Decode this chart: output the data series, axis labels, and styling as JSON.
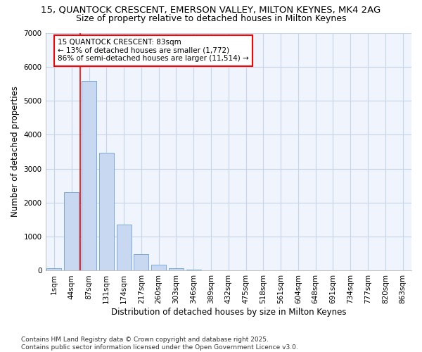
{
  "title_line1": "15, QUANTOCK CRESCENT, EMERSON VALLEY, MILTON KEYNES, MK4 2AG",
  "title_line2": "Size of property relative to detached houses in Milton Keynes",
  "xlabel": "Distribution of detached houses by size in Milton Keynes",
  "ylabel": "Number of detached properties",
  "categories": [
    "1sqm",
    "44sqm",
    "87sqm",
    "131sqm",
    "174sqm",
    "217sqm",
    "260sqm",
    "303sqm",
    "346sqm",
    "389sqm",
    "432sqm",
    "475sqm",
    "518sqm",
    "561sqm",
    "604sqm",
    "648sqm",
    "691sqm",
    "734sqm",
    "777sqm",
    "820sqm",
    "863sqm"
  ],
  "values": [
    75,
    2300,
    5580,
    3460,
    1360,
    480,
    175,
    75,
    30,
    0,
    0,
    0,
    0,
    0,
    0,
    0,
    0,
    0,
    0,
    0,
    0
  ],
  "bar_color": "#c8d8f0",
  "bar_edge_color": "#7aaadd",
  "grid_color": "#c8d4e8",
  "background_color": "#ffffff",
  "plot_bg_color": "#f0f4fc",
  "vline_color": "red",
  "vline_x_idx": 2,
  "annotation_text": "15 QUANTOCK CRESCENT: 83sqm\n← 13% of detached houses are smaller (1,772)\n86% of semi-detached houses are larger (11,514) →",
  "annotation_box_color": "white",
  "annotation_box_edge": "red",
  "ylim": [
    0,
    7000
  ],
  "yticks": [
    0,
    1000,
    2000,
    3000,
    4000,
    5000,
    6000,
    7000
  ],
  "footer": "Contains HM Land Registry data © Crown copyright and database right 2025.\nContains public sector information licensed under the Open Government Licence v3.0.",
  "title_fontsize": 9.5,
  "subtitle_fontsize": 9,
  "axis_label_fontsize": 8.5,
  "tick_fontsize": 7.5,
  "annotation_fontsize": 7.5,
  "footer_fontsize": 6.5
}
